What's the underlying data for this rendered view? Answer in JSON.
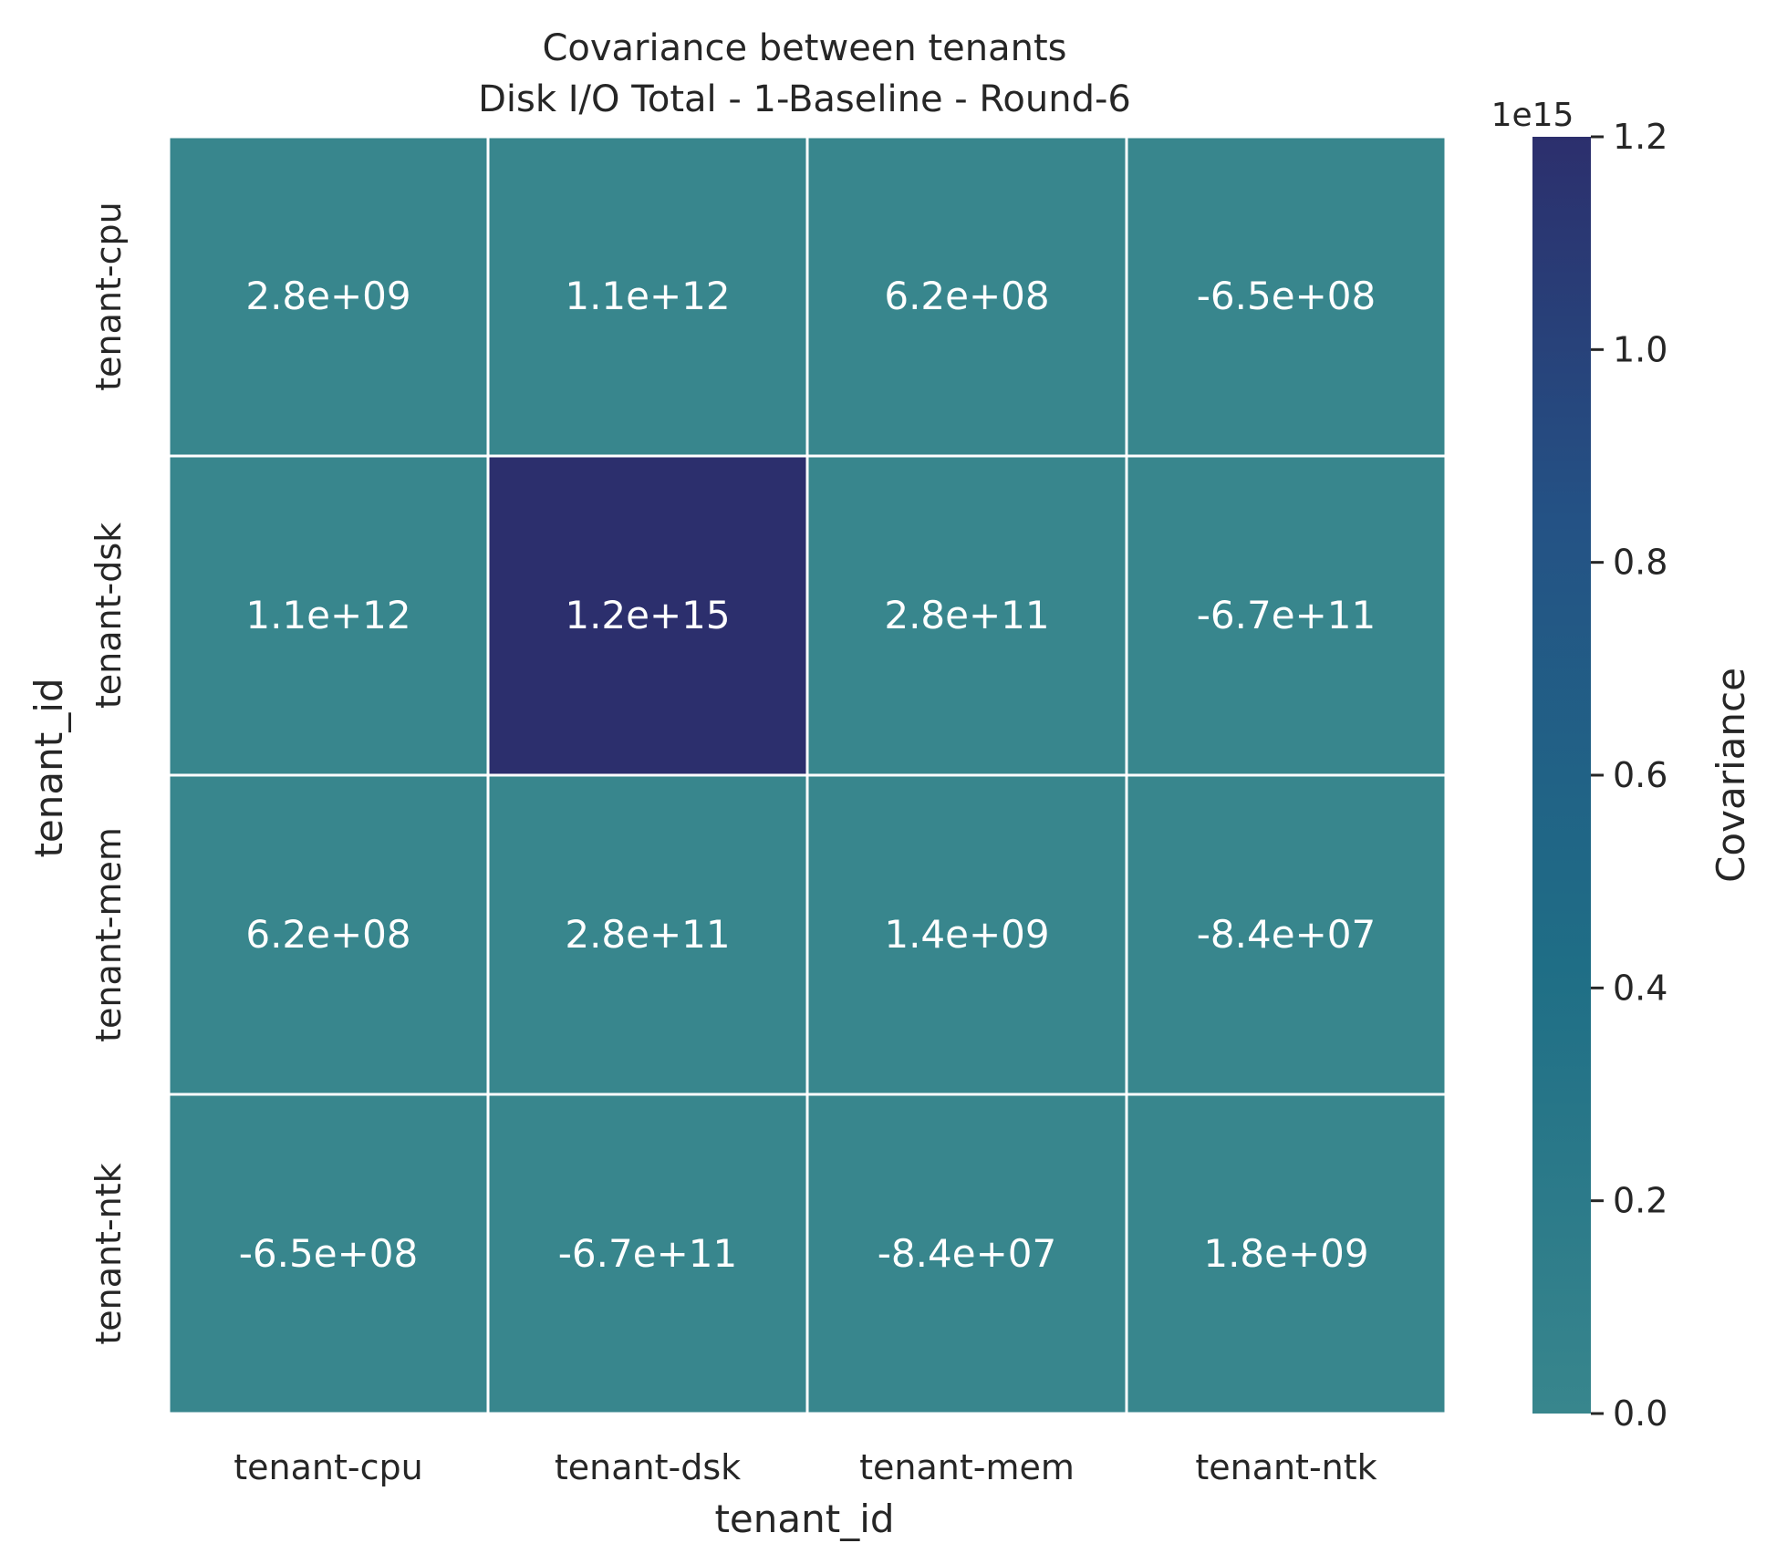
{
  "chart_data": {
    "type": "heatmap",
    "title": "Covariance between tenants",
    "subtitle": "Disk I/O Total - 1-Baseline - Round-6",
    "xlabel": "tenant_id",
    "ylabel": "tenant_id",
    "x_categories": [
      "tenant-cpu",
      "tenant-dsk",
      "tenant-mem",
      "tenant-ntk"
    ],
    "y_categories": [
      "tenant-cpu",
      "tenant-dsk",
      "tenant-mem",
      "tenant-ntk"
    ],
    "values": [
      [
        2800000000.0,
        1100000000000.0,
        620000000.0,
        -650000000.0
      ],
      [
        1100000000000.0,
        1200000000000000.0,
        280000000000.0,
        -670000000000.0
      ],
      [
        620000000.0,
        280000000000.0,
        1400000000.0,
        -84000000.0
      ],
      [
        -650000000.0,
        -670000000000.0,
        -84000000.0,
        1800000000.0
      ]
    ],
    "cell_labels": [
      [
        "2.8e+09",
        "1.1e+12",
        "6.2e+08",
        "-6.5e+08"
      ],
      [
        "1.1e+12",
        "1.2e+15",
        "2.8e+11",
        "-6.7e+11"
      ],
      [
        "6.2e+08",
        "2.8e+11",
        "1.4e+09",
        "-8.4e+07"
      ],
      [
        "-6.5e+08",
        "-6.7e+11",
        "-8.4e+07",
        "1.8e+09"
      ]
    ],
    "colorbar": {
      "label": "Covariance",
      "offset_text": "1e15",
      "range": [
        0,
        1.2
      ],
      "ticks": [
        0.0,
        0.2,
        0.4,
        0.6,
        0.8,
        1.0,
        1.2
      ],
      "tick_labels": [
        "0.0",
        "0.2",
        "0.4",
        "0.6",
        "0.8",
        "1.0",
        "1.2"
      ],
      "scale": 1000000000000000.0
    },
    "colors": {
      "low": "#38868d",
      "mid": "#1e6683",
      "high": "#2c2f6d",
      "grid_line": "#ffffff",
      "cell_text": "#ffffff"
    },
    "grid": false,
    "legend": "colorbar-right"
  }
}
